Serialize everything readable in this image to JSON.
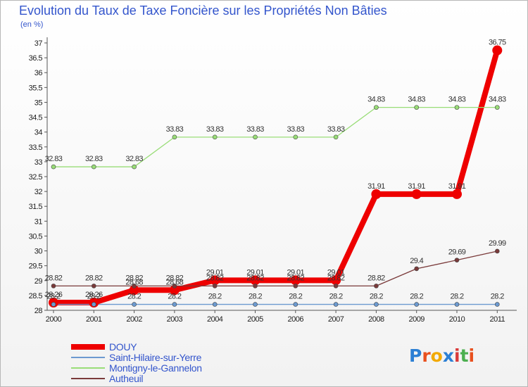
{
  "title": "Evolution du Taux de Taxe Foncière sur les Propriétés Non Bâties",
  "unit_label": "(en %)",
  "logo": {
    "text": "Proxiti",
    "letters": [
      "P",
      "r",
      "o",
      "x",
      "i",
      "t",
      "i"
    ],
    "colors": [
      "#2b7fd4",
      "#e8501e",
      "#f2a900",
      "#2b7fd4",
      "#d93a3a",
      "#4caf50",
      "#e8501e"
    ]
  },
  "chart_data": {
    "type": "line",
    "title": "Evolution du Taux de Taxe Foncière sur les Propriétés Non Bâties",
    "ylabel": "(en %)",
    "xlabel": "",
    "categories": [
      "2000",
      "2001",
      "2002",
      "2003",
      "2004",
      "2005",
      "2006",
      "2007",
      "2008",
      "2009",
      "2010",
      "2011"
    ],
    "ylim": [
      28,
      37
    ],
    "yticks": [
      "28",
      "28.5",
      "29",
      "29.5",
      "30",
      "30.5",
      "31",
      "31.5",
      "32",
      "32.5",
      "33",
      "33.5",
      "34",
      "34.5",
      "35",
      "35.5",
      "36",
      "36.5",
      "37"
    ],
    "grid": false,
    "series": [
      {
        "name": "DOUY",
        "color": "#ee0000",
        "width": 8,
        "marker": 7,
        "values": [
          28.26,
          28.26,
          28.68,
          28.68,
          29.01,
          29.01,
          29.01,
          29.01,
          31.91,
          31.91,
          31.91,
          36.75
        ],
        "labels": [
          "28.26",
          "28.26",
          "28.68",
          "28.68",
          "29.01",
          "29.01",
          "29.01",
          "29.01",
          "31.91",
          "31.91",
          "31.91",
          "36.75"
        ]
      },
      {
        "name": "Saint-Hilaire-sur-Yerre",
        "color": "#6c9ad0",
        "width": 1.3,
        "marker": 3,
        "values": [
          28.2,
          28.2,
          28.2,
          28.2,
          28.2,
          28.2,
          28.2,
          28.2,
          28.2,
          28.2,
          28.2,
          28.2
        ],
        "labels": [
          "28.2",
          "28.2",
          "28.2",
          "28.2",
          "28.2",
          "28.2",
          "28.2",
          "28.2",
          "28.2",
          "28.2",
          "28.2",
          "28.2"
        ]
      },
      {
        "name": "Montigny-le-Gannelon",
        "color": "#99dd77",
        "width": 1.3,
        "marker": 3,
        "values": [
          32.83,
          32.83,
          32.83,
          33.83,
          33.83,
          33.83,
          33.83,
          33.83,
          34.83,
          34.83,
          34.83,
          34.83
        ],
        "labels": [
          "32.83",
          "32.83",
          "32.83",
          "33.83",
          "33.83",
          "33.83",
          "33.83",
          "33.83",
          "34.83",
          "34.83",
          "34.83",
          "34.83"
        ]
      },
      {
        "name": "Autheuil",
        "color": "#7a3a3a",
        "width": 1.3,
        "marker": 3,
        "values": [
          28.82,
          28.82,
          28.82,
          28.82,
          28.82,
          28.82,
          28.82,
          28.82,
          28.82,
          29.4,
          29.69,
          29.99
        ],
        "labels": [
          "28.82",
          "28.82",
          "28.82",
          "28.82",
          "28.82",
          "28.82",
          "28.82",
          "28.82",
          "28.82",
          "29.4",
          "29.69",
          "29.99"
        ]
      }
    ]
  }
}
